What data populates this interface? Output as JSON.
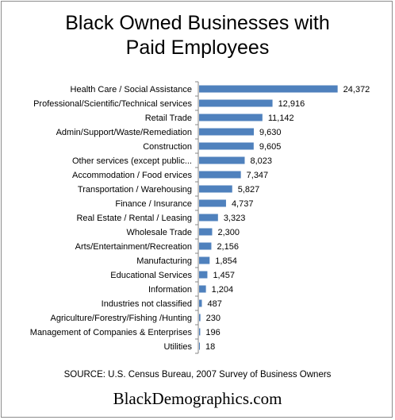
{
  "chart_data": {
    "type": "bar",
    "orientation": "horizontal",
    "title": "Black Owned Businesses with Paid Employees",
    "title_lines": [
      "Black Owned Businesses with",
      "Paid Employees"
    ],
    "categories": [
      "Health Care / Social Assistance",
      "Professional/Scientific/Technical services",
      "Retail Trade",
      "Admin/Support/Waste/Remediation",
      "Construction",
      "Other services (except public...",
      "Accommodation / Food ervices",
      "Transportation / Warehousing",
      "Finance / Insurance",
      "Real Estate / Rental / Leasing",
      "Wholesale Trade",
      "Arts/Entertainment/Recreation",
      "Manufacturing",
      "Educational Services",
      "Information",
      "Industries not classified",
      "Agriculture/Forestry/Fishing /Hunting",
      "Management of Companies & Enterprises",
      "Utilities"
    ],
    "values": [
      24372,
      12916,
      11142,
      9630,
      9605,
      8023,
      7347,
      5827,
      4737,
      3323,
      2300,
      2156,
      1854,
      1457,
      1204,
      487,
      230,
      196,
      18
    ],
    "value_labels": [
      "24,372",
      "12,916",
      "11,142",
      "9,630",
      "9,605",
      "8,023",
      "7,347",
      "5,827",
      "4,737",
      "3,323",
      "2,300",
      "2,156",
      "1,854",
      "1,457",
      "1,204",
      "487",
      "230",
      "196",
      "18"
    ],
    "xlim": [
      0,
      30000
    ],
    "grid": false,
    "legend": "none",
    "bar_color": "#4f81bd"
  },
  "source": "SOURCE: U.S. Census Bureau, 2007 Survey of Business Owners",
  "site": "BlackDemographics.com"
}
